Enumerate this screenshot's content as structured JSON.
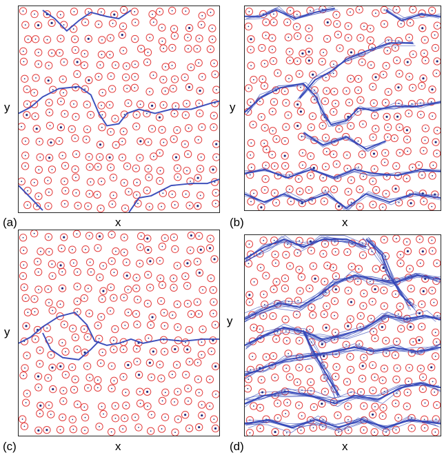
{
  "figure": {
    "panels": [
      {
        "id": "a",
        "label": "(a)",
        "xlabel": "x",
        "ylabel": "y",
        "flow_density": "low",
        "seed": 11,
        "streams": [
          [
            [
              0.12,
              0.02
            ],
            [
              0.18,
              0.06
            ],
            [
              0.24,
              0.12
            ],
            [
              0.3,
              0.07
            ],
            [
              0.36,
              0.03
            ],
            [
              0.44,
              0.05
            ],
            [
              0.5,
              0.06
            ],
            [
              0.56,
              0.02
            ]
          ],
          [
            [
              0.0,
              0.52
            ],
            [
              0.06,
              0.49
            ],
            [
              0.12,
              0.44
            ],
            [
              0.2,
              0.4
            ],
            [
              0.3,
              0.39
            ],
            [
              0.36,
              0.43
            ],
            [
              0.4,
              0.52
            ],
            [
              0.44,
              0.58
            ],
            [
              0.5,
              0.57
            ],
            [
              0.54,
              0.52
            ],
            [
              0.6,
              0.5
            ],
            [
              0.68,
              0.52
            ],
            [
              0.76,
              0.5
            ],
            [
              0.86,
              0.5
            ],
            [
              0.96,
              0.47
            ],
            [
              1.0,
              0.46
            ]
          ],
          [
            [
              0.0,
              0.87
            ],
            [
              0.04,
              0.91
            ],
            [
              0.08,
              0.95
            ],
            [
              0.12,
              0.99
            ]
          ],
          [
            [
              0.55,
              1.0
            ],
            [
              0.6,
              0.93
            ],
            [
              0.66,
              0.92
            ],
            [
              0.76,
              0.87
            ],
            [
              0.86,
              0.86
            ],
            [
              0.94,
              0.86
            ],
            [
              1.0,
              0.84
            ]
          ]
        ]
      },
      {
        "id": "b",
        "label": "(b)",
        "xlabel": "x",
        "ylabel": "y",
        "flow_density": "high",
        "seed": 23,
        "streams": [
          [
            [
              0.0,
              0.05
            ],
            [
              0.08,
              0.05
            ],
            [
              0.16,
              0.02
            ],
            [
              0.26,
              0.06
            ],
            [
              0.36,
              0.03
            ],
            [
              0.46,
              0.01
            ]
          ],
          [
            [
              0.72,
              0.02
            ],
            [
              0.8,
              0.07
            ],
            [
              0.9,
              0.04
            ],
            [
              1.0,
              0.05
            ]
          ],
          [
            [
              0.0,
              0.52
            ],
            [
              0.08,
              0.45
            ],
            [
              0.18,
              0.4
            ],
            [
              0.3,
              0.38
            ],
            [
              0.36,
              0.44
            ],
            [
              0.4,
              0.52
            ],
            [
              0.44,
              0.58
            ],
            [
              0.52,
              0.56
            ],
            [
              0.58,
              0.5
            ],
            [
              0.66,
              0.51
            ],
            [
              0.76,
              0.49
            ],
            [
              0.88,
              0.49
            ],
            [
              1.0,
              0.47
            ]
          ],
          [
            [
              0.28,
              0.45
            ],
            [
              0.36,
              0.36
            ],
            [
              0.44,
              0.32
            ],
            [
              0.52,
              0.26
            ],
            [
              0.62,
              0.22
            ],
            [
              0.74,
              0.18
            ],
            [
              0.86,
              0.18
            ]
          ],
          [
            [
              0.0,
              0.82
            ],
            [
              0.1,
              0.8
            ],
            [
              0.22,
              0.84
            ],
            [
              0.34,
              0.8
            ],
            [
              0.46,
              0.84
            ],
            [
              0.56,
              0.8
            ],
            [
              0.66,
              0.82
            ],
            [
              0.78,
              0.83
            ],
            [
              0.9,
              0.8
            ],
            [
              1.0,
              0.81
            ]
          ],
          [
            [
              0.0,
              0.92
            ],
            [
              0.1,
              0.96
            ],
            [
              0.2,
              0.92
            ],
            [
              0.3,
              0.96
            ],
            [
              0.42,
              0.92
            ],
            [
              0.52,
              0.99
            ],
            [
              0.62,
              0.92
            ],
            [
              0.74,
              0.96
            ],
            [
              0.86,
              0.92
            ],
            [
              1.0,
              0.94
            ]
          ],
          [
            [
              0.3,
              0.62
            ],
            [
              0.4,
              0.68
            ],
            [
              0.52,
              0.64
            ],
            [
              0.62,
              0.7
            ],
            [
              0.72,
              0.66
            ]
          ]
        ]
      },
      {
        "id": "c",
        "label": "(c)",
        "xlabel": "x",
        "ylabel": "y",
        "flow_density": "low",
        "seed": 37,
        "streams": [
          [
            [
              0.0,
              0.55
            ],
            [
              0.06,
              0.52
            ],
            [
              0.12,
              0.47
            ],
            [
              0.2,
              0.42
            ],
            [
              0.28,
              0.4
            ],
            [
              0.34,
              0.46
            ],
            [
              0.38,
              0.54
            ],
            [
              0.44,
              0.56
            ],
            [
              0.5,
              0.55
            ],
            [
              0.56,
              0.53
            ],
            [
              0.62,
              0.55
            ],
            [
              0.72,
              0.53
            ],
            [
              0.82,
              0.54
            ],
            [
              0.92,
              0.53
            ],
            [
              1.0,
              0.53
            ]
          ],
          [
            [
              0.12,
              0.5
            ],
            [
              0.16,
              0.58
            ],
            [
              0.22,
              0.62
            ],
            [
              0.3,
              0.63
            ],
            [
              0.36,
              0.58
            ],
            [
              0.4,
              0.54
            ]
          ]
        ]
      },
      {
        "id": "d",
        "label": "(d)",
        "xlabel": "x",
        "ylabel": "y",
        "flow_density": "very-high",
        "seed": 51,
        "streams": [
          [
            [
              0.0,
              0.12
            ],
            [
              0.1,
              0.06
            ],
            [
              0.2,
              0.02
            ],
            [
              0.3,
              0.06
            ],
            [
              0.4,
              0.02
            ],
            [
              0.52,
              0.02
            ],
            [
              0.62,
              0.06
            ]
          ],
          [
            [
              0.0,
              0.42
            ],
            [
              0.08,
              0.38
            ],
            [
              0.18,
              0.34
            ],
            [
              0.28,
              0.36
            ],
            [
              0.38,
              0.3
            ],
            [
              0.46,
              0.24
            ],
            [
              0.56,
              0.2
            ],
            [
              0.66,
              0.22
            ],
            [
              0.76,
              0.24
            ],
            [
              0.88,
              0.2
            ],
            [
              1.0,
              0.22
            ]
          ],
          [
            [
              0.0,
              0.55
            ],
            [
              0.1,
              0.5
            ],
            [
              0.2,
              0.46
            ],
            [
              0.3,
              0.48
            ],
            [
              0.4,
              0.52
            ],
            [
              0.5,
              0.5
            ],
            [
              0.62,
              0.46
            ],
            [
              0.72,
              0.4
            ],
            [
              0.82,
              0.42
            ],
            [
              0.92,
              0.4
            ],
            [
              1.0,
              0.42
            ]
          ],
          [
            [
              0.0,
              0.7
            ],
            [
              0.1,
              0.66
            ],
            [
              0.22,
              0.62
            ],
            [
              0.34,
              0.6
            ],
            [
              0.46,
              0.58
            ],
            [
              0.56,
              0.56
            ],
            [
              0.66,
              0.58
            ],
            [
              0.76,
              0.56
            ],
            [
              0.88,
              0.58
            ],
            [
              1.0,
              0.56
            ]
          ],
          [
            [
              0.0,
              0.84
            ],
            [
              0.1,
              0.8
            ],
            [
              0.22,
              0.78
            ],
            [
              0.34,
              0.8
            ],
            [
              0.46,
              0.84
            ],
            [
              0.56,
              0.8
            ],
            [
              0.68,
              0.82
            ],
            [
              0.8,
              0.76
            ],
            [
              0.9,
              0.74
            ],
            [
              1.0,
              0.76
            ]
          ],
          [
            [
              0.0,
              0.94
            ],
            [
              0.12,
              0.92
            ],
            [
              0.24,
              0.96
            ],
            [
              0.36,
              0.92
            ],
            [
              0.48,
              0.96
            ],
            [
              0.6,
              0.92
            ],
            [
              0.72,
              0.96
            ],
            [
              0.84,
              0.92
            ],
            [
              1.0,
              0.94
            ]
          ],
          [
            [
              0.62,
              0.02
            ],
            [
              0.7,
              0.1
            ],
            [
              0.74,
              0.2
            ],
            [
              0.8,
              0.3
            ],
            [
              0.86,
              0.36
            ]
          ],
          [
            [
              0.3,
              0.48
            ],
            [
              0.36,
              0.6
            ],
            [
              0.42,
              0.7
            ],
            [
              0.48,
              0.8
            ]
          ]
        ]
      }
    ],
    "colors": {
      "circle": "#e33b3b",
      "dot": "#1f2a7a",
      "stream": "#3347b8",
      "frame": "#222222"
    }
  }
}
